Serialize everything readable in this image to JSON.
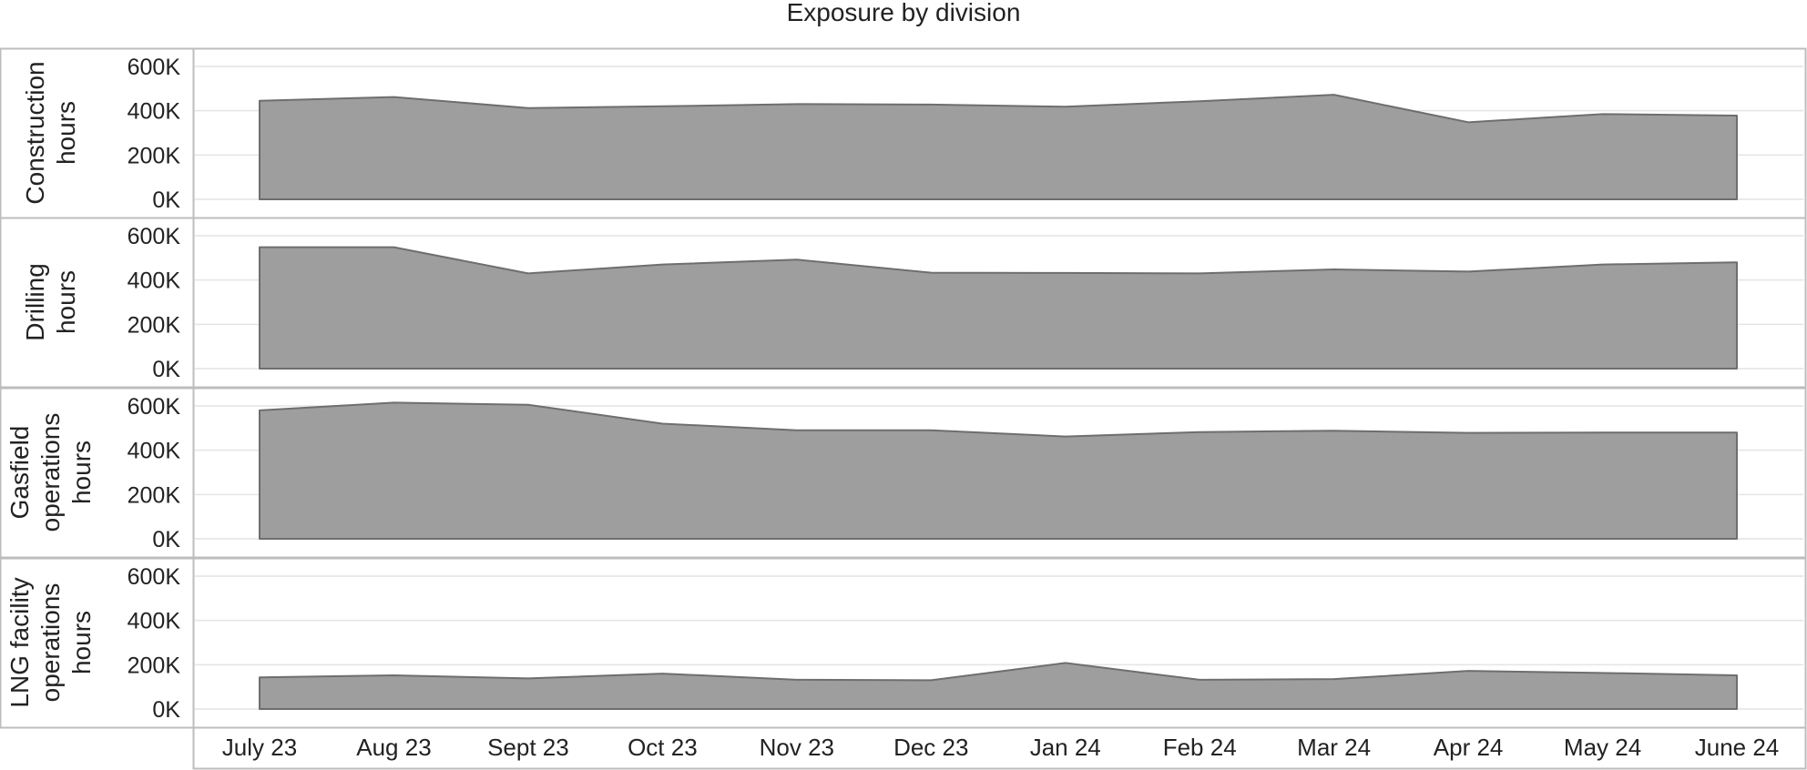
{
  "chart_data": {
    "type": "area",
    "title": "Exposure by division",
    "categories": [
      "July 23",
      "Aug 23",
      "Sept 23",
      "Oct 23",
      "Nov 23",
      "Dec 23",
      "Jan 24",
      "Feb 24",
      "Mar 24",
      "Apr 24",
      "May 24",
      "June 24"
    ],
    "ylim": [
      0,
      600000
    ],
    "yticks": [
      0,
      200000,
      400000,
      600000
    ],
    "ytick_labels": [
      "0K",
      "200K",
      "400K",
      "600K"
    ],
    "grid": "horizontal",
    "colors": {
      "area_fill": "#9e9e9e",
      "area_stroke": "#6e6e6e",
      "grid": "#e4e4e4",
      "border": "#bdbdbd"
    },
    "series": [
      {
        "panel_label": [
          "Construction",
          "hours"
        ],
        "values": [
          445000,
          462000,
          412000,
          420000,
          430000,
          428000,
          418000,
          443000,
          472000,
          348000,
          385000,
          378000
        ]
      },
      {
        "panel_label": [
          "Drilling",
          "hours"
        ],
        "values": [
          548000,
          548000,
          430000,
          470000,
          492000,
          433000,
          432000,
          430000,
          448000,
          438000,
          470000,
          480000
        ]
      },
      {
        "panel_label": [
          "Gasfield",
          "operations",
          "hours"
        ],
        "values": [
          580000,
          615000,
          605000,
          520000,
          490000,
          490000,
          462000,
          482000,
          488000,
          478000,
          480000,
          480000
        ]
      },
      {
        "panel_label": [
          "LNG facility",
          "operations",
          "hours"
        ],
        "values": [
          143000,
          152000,
          138000,
          160000,
          132000,
          130000,
          208000,
          132000,
          135000,
          172000,
          163000,
          152000
        ]
      }
    ]
  }
}
